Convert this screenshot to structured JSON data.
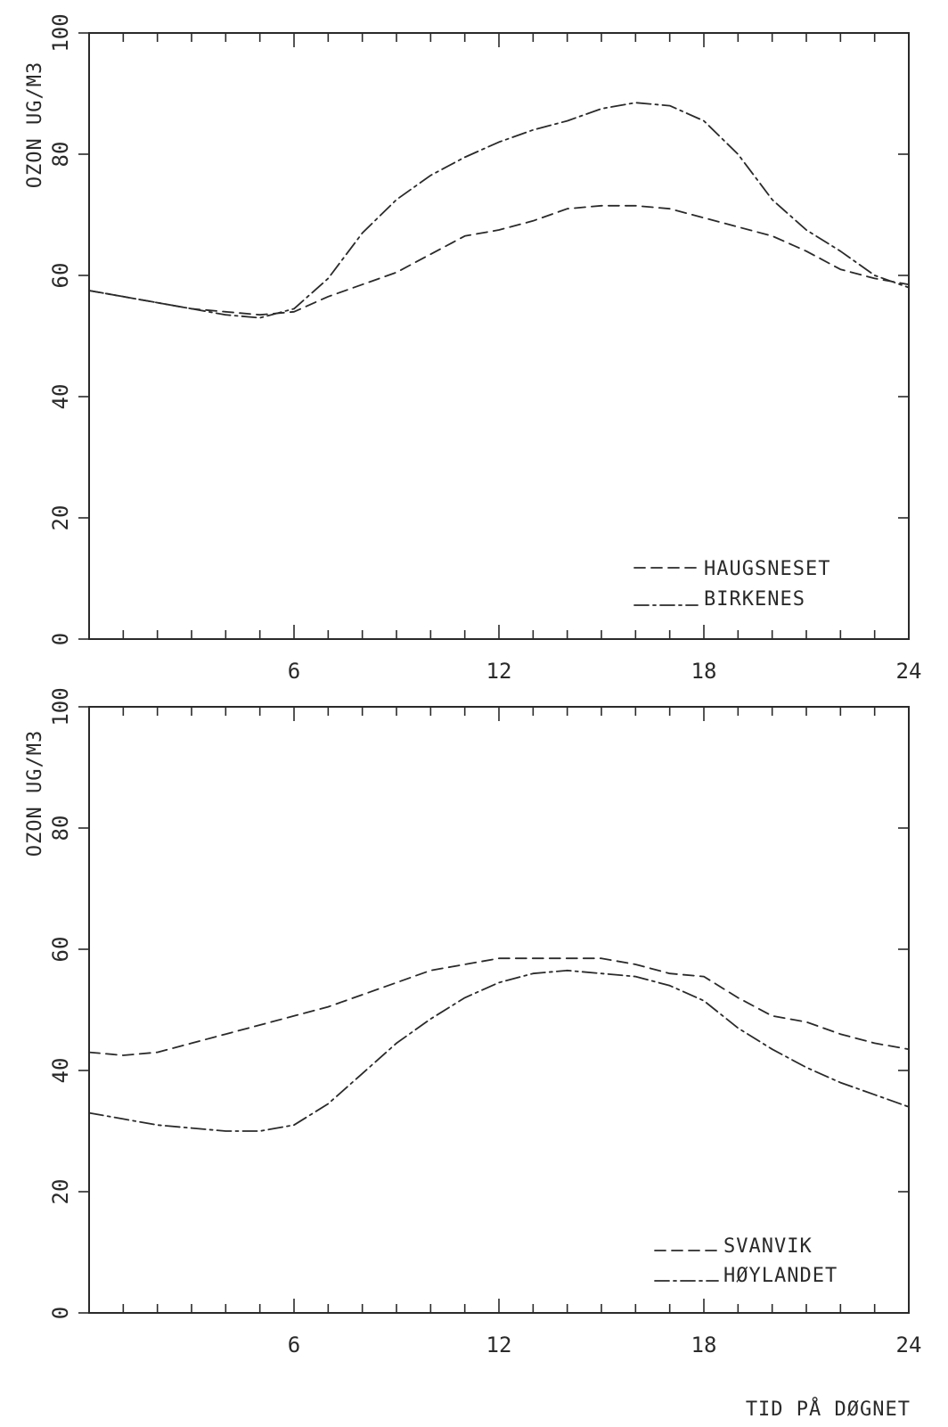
{
  "xlabel": "TID PÅ DØGNET",
  "chart_data": [
    {
      "type": "line",
      "ylabel": "OZON UG/M3",
      "xlabel": "",
      "xlim": [
        0,
        24
      ],
      "ylim": [
        0,
        100
      ],
      "xticks": [
        6,
        12,
        18,
        24
      ],
      "yticks": [
        0,
        20,
        40,
        60,
        80,
        100
      ],
      "legend_position": "bottom-right",
      "series": [
        {
          "name": "HAUGSNESET",
          "style": "dashed",
          "x": [
            0,
            1,
            2,
            3,
            4,
            5,
            6,
            7,
            8,
            9,
            10,
            11,
            12,
            13,
            14,
            15,
            16,
            17,
            18,
            19,
            20,
            21,
            22,
            23,
            24
          ],
          "values": [
            57.5,
            56.5,
            55.5,
            54.5,
            54,
            53.5,
            54,
            56.5,
            58.5,
            60.5,
            63.5,
            66.5,
            67.5,
            69,
            71,
            71.5,
            71.5,
            71,
            69.5,
            68,
            66.5,
            64,
            61,
            59.5,
            58.5
          ]
        },
        {
          "name": "BIRKENES",
          "style": "dashdot",
          "x": [
            0,
            1,
            2,
            3,
            4,
            5,
            6,
            7,
            8,
            9,
            10,
            11,
            12,
            13,
            14,
            15,
            16,
            17,
            18,
            19,
            20,
            21,
            22,
            23,
            24
          ],
          "values": [
            57.5,
            56.5,
            55.5,
            54.5,
            53.5,
            53,
            54.5,
            59.5,
            67,
            72.5,
            76.5,
            79.5,
            82,
            84,
            85.5,
            87.5,
            88.5,
            88,
            85.5,
            80,
            72.5,
            67.5,
            64,
            60,
            58
          ]
        }
      ]
    },
    {
      "type": "line",
      "ylabel": "OZON UG/M3",
      "xlabel": "TID PÅ DØGNET",
      "xlim": [
        0,
        24
      ],
      "ylim": [
        0,
        100
      ],
      "xticks": [
        6,
        12,
        18,
        24
      ],
      "yticks": [
        0,
        20,
        40,
        60,
        80,
        100
      ],
      "legend_position": "bottom-right",
      "series": [
        {
          "name": "SVANVIK",
          "style": "dashed",
          "x": [
            0,
            1,
            2,
            3,
            4,
            5,
            6,
            7,
            8,
            9,
            10,
            11,
            12,
            13,
            14,
            15,
            16,
            17,
            18,
            19,
            20,
            21,
            22,
            23,
            24
          ],
          "values": [
            43,
            42.5,
            43,
            44.5,
            46,
            47.5,
            49,
            50.5,
            52.5,
            54.5,
            56.5,
            57.5,
            58.5,
            58.5,
            58.5,
            58.5,
            57.5,
            56,
            55.5,
            52,
            49,
            48,
            46,
            44.5,
            43.5
          ]
        },
        {
          "name": "HØYLANDET",
          "style": "dashdot",
          "x": [
            0,
            1,
            2,
            3,
            4,
            5,
            6,
            7,
            8,
            9,
            10,
            11,
            12,
            13,
            14,
            15,
            16,
            17,
            18,
            19,
            20,
            21,
            22,
            23,
            24
          ],
          "values": [
            33,
            32,
            31,
            30.5,
            30,
            30,
            31,
            34.5,
            39.5,
            44.5,
            48.5,
            52,
            54.5,
            56,
            56.5,
            56,
            55.5,
            54,
            51.5,
            47,
            43.5,
            40.5,
            38,
            36,
            34
          ]
        }
      ]
    }
  ]
}
